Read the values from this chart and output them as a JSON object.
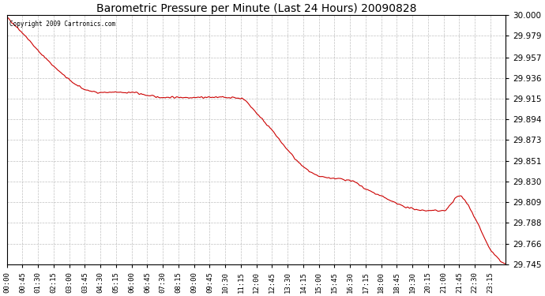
{
  "title": "Barometric Pressure per Minute (Last 24 Hours) 20090828",
  "copyright": "Copyright 2009 Cartronics.com",
  "line_color": "#cc0000",
  "bg_color": "#ffffff",
  "plot_bg_color": "#ffffff",
  "grid_color": "#b0b0b0",
  "ylim": [
    29.745,
    30.0
  ],
  "yticks": [
    29.745,
    29.766,
    29.788,
    29.809,
    29.83,
    29.851,
    29.873,
    29.894,
    29.915,
    29.936,
    29.957,
    29.979,
    30.0
  ],
  "xtick_labels": [
    "00:00",
    "00:45",
    "01:30",
    "02:15",
    "03:00",
    "03:45",
    "04:30",
    "05:15",
    "06:00",
    "06:45",
    "07:30",
    "08:15",
    "09:00",
    "09:45",
    "10:30",
    "11:15",
    "12:00",
    "12:45",
    "13:30",
    "14:15",
    "15:00",
    "15:45",
    "16:30",
    "17:15",
    "18:00",
    "18:45",
    "19:30",
    "20:15",
    "21:00",
    "21:45",
    "22:30",
    "23:15"
  ],
  "key_times_minutes": [
    0,
    45,
    90,
    135,
    180,
    225,
    270,
    315,
    360,
    405,
    450,
    495,
    540,
    585,
    630,
    675,
    720,
    765,
    810,
    855,
    900,
    945,
    990,
    1035,
    1080,
    1125,
    1170,
    1215,
    1260,
    1305,
    1350,
    1395,
    1439
  ],
  "key_values": [
    29.998,
    29.982,
    29.964,
    29.948,
    29.934,
    29.924,
    29.921,
    29.921,
    29.921,
    29.918,
    29.916,
    29.916,
    29.916,
    29.916,
    29.916,
    29.915,
    29.9,
    29.882,
    29.862,
    29.845,
    29.835,
    29.833,
    29.831,
    29.822,
    29.815,
    29.807,
    29.802,
    29.8,
    29.8,
    29.815,
    29.793,
    29.76,
    29.745
  ]
}
